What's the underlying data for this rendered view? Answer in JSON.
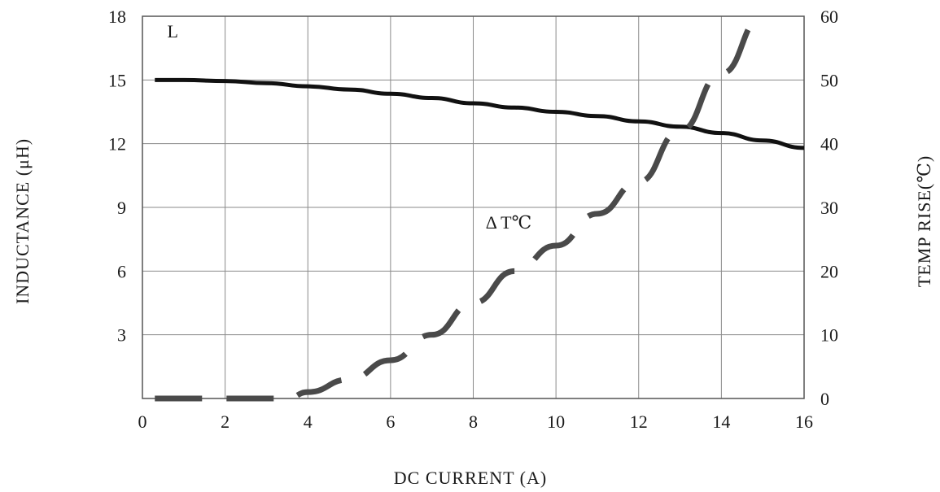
{
  "chart_data": {
    "type": "line",
    "title": "",
    "xlabel": "DC CURRENT (A)",
    "ylabel_left": "INDUCTANCE (μH)",
    "ylabel_right": "TEMP RISE(℃)",
    "xlim": [
      0,
      16
    ],
    "ylim_left": [
      0,
      18
    ],
    "ylim_right": [
      0,
      60
    ],
    "x_ticks": [
      "0",
      "2",
      "4",
      "6",
      "8",
      "10",
      "12",
      "14",
      "16"
    ],
    "y_left_ticks": [
      "3",
      "6",
      "9",
      "12",
      "15",
      "18"
    ],
    "y_right_ticks": [
      "0",
      "10",
      "20",
      "30",
      "40",
      "50",
      "60"
    ],
    "grid": true,
    "series": [
      {
        "name": "L",
        "axis": "left",
        "style": "solid",
        "color": "#111111",
        "x": [
          0.3,
          1,
          2,
          3,
          4,
          5,
          6,
          7,
          8,
          9,
          10,
          11,
          12,
          13,
          14,
          15,
          16
        ],
        "y": [
          15.0,
          15.0,
          14.95,
          14.85,
          14.7,
          14.55,
          14.35,
          14.15,
          13.9,
          13.7,
          13.5,
          13.3,
          13.05,
          12.8,
          12.5,
          12.15,
          11.8
        ]
      },
      {
        "name": "Δ T℃",
        "axis": "right",
        "style": "dashed",
        "color": "#4a4a4a",
        "x": [
          0.3,
          1,
          2,
          3,
          3.5,
          4,
          5,
          6,
          7,
          8,
          9,
          10,
          11,
          12,
          13,
          14,
          15
        ],
        "y": [
          0,
          0,
          0,
          0,
          0,
          1,
          3,
          6,
          10,
          15,
          20,
          24,
          29,
          34,
          42,
          51,
          60
        ]
      }
    ],
    "series_labels": [
      {
        "text": "L",
        "x": 0.6,
        "y_left": 17.0
      },
      {
        "text": "Δ T℃",
        "x": 8.3,
        "y_left": 8.0
      }
    ]
  }
}
